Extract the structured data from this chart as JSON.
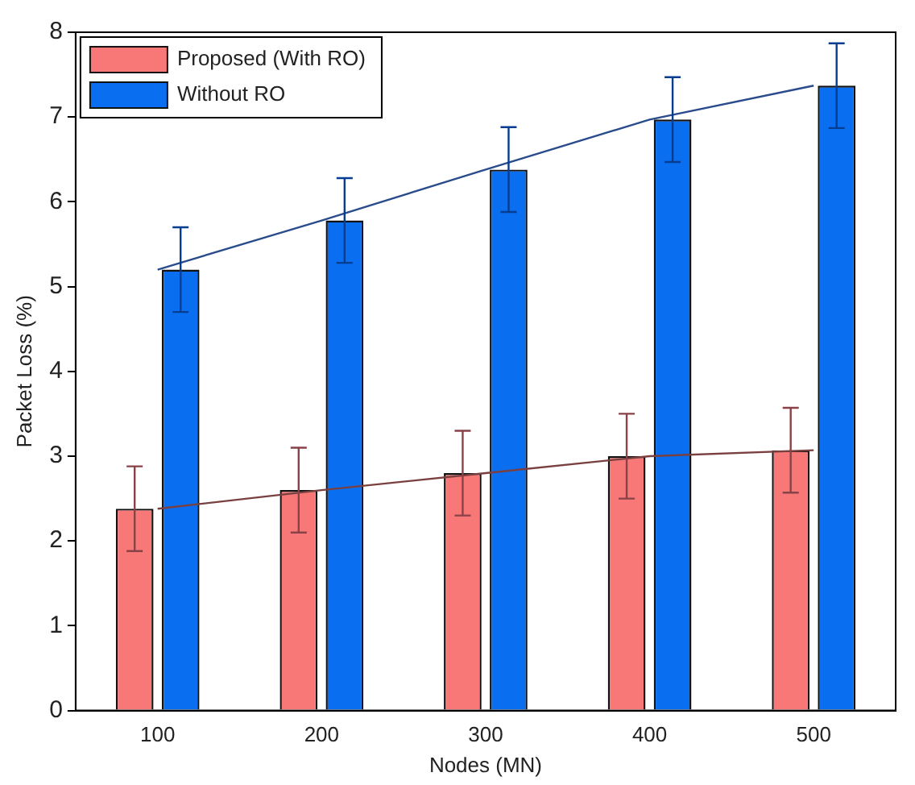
{
  "chart_data": {
    "type": "bar",
    "xlabel": "Nodes (MN)",
    "ylabel": "Packet Loss (%)",
    "categories": [
      "100",
      "200",
      "300",
      "400",
      "500"
    ],
    "series": [
      {
        "name": "Proposed (With RO)",
        "color": "#f87878",
        "values": [
          2.38,
          2.6,
          2.8,
          3.0,
          3.07
        ],
        "errors": [
          0.5,
          0.5,
          0.5,
          0.5,
          0.5
        ]
      },
      {
        "name": "Without RO",
        "color": "#0a6ef0",
        "values": [
          5.2,
          5.78,
          6.38,
          6.97,
          7.37
        ],
        "errors": [
          0.5,
          0.5,
          0.5,
          0.5,
          0.5
        ]
      },
      {
        "type": "line",
        "color": "#7a4040",
        "values": [
          2.38,
          2.6,
          2.8,
          3.0,
          3.07
        ]
      },
      {
        "type": "line",
        "color": "#2a4c8c",
        "values": [
          5.2,
          5.78,
          6.38,
          6.97,
          7.37
        ]
      }
    ],
    "ylim": [
      0,
      8
    ],
    "yticks": [
      0,
      1,
      2,
      3,
      4,
      5,
      6,
      7,
      8
    ],
    "grid": false,
    "legend": "top left"
  }
}
